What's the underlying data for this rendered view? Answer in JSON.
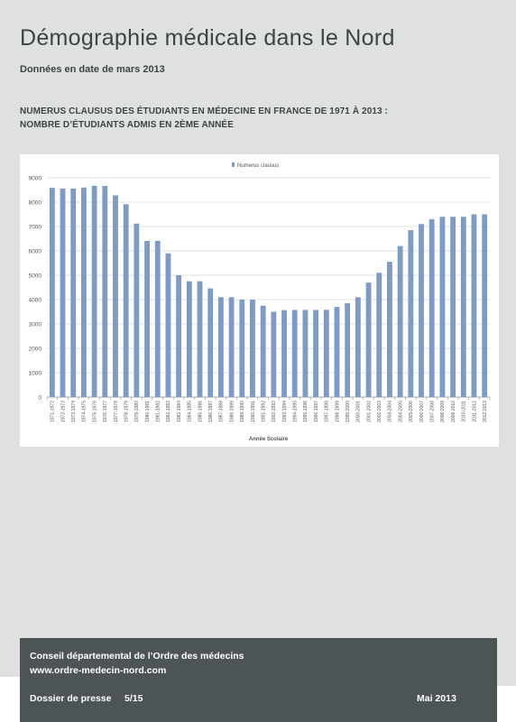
{
  "header": {
    "title": "Démographie médicale dans le Nord",
    "subtitle": "Données en date de mars 2013",
    "heading_line1": "NUMERUS CLAUSUS DES ÉTUDIANTS EN MÉDECINE EN FRANCE DE 1971 À 2013 :",
    "heading_line2": "NOMBRE D’ÉTUDIANTS ADMIS EN 2ÈME ANNÉE"
  },
  "chart_data": {
    "type": "bar",
    "categories": [
      "1971-1972",
      "1972-1973",
      "1973-1974",
      "1974-1975",
      "1975-1976",
      "1976-1977",
      "1977-1978",
      "1978-1979",
      "1979-1980",
      "1980-1981",
      "1981-1982",
      "1982-1983",
      "1983-1984",
      "1984-1985",
      "1985-1986",
      "1986-1987",
      "1987-1988",
      "1988-1989",
      "1989-1990",
      "1990-1991",
      "1991-1992",
      "1992-1993",
      "1993-1994",
      "1994-1995",
      "1995-1996",
      "1996-1997",
      "1997-1998",
      "1998-1999",
      "1999-2000",
      "2000-2001",
      "2001-2002",
      "2002-2003",
      "2003-2004",
      "2004-2005",
      "2005-2006",
      "2006-2007",
      "2007-2008",
      "2008-2009",
      "2009-2010",
      "2010-2011",
      "2011-2012",
      "2012-2013"
    ],
    "series": [
      {
        "name": "Numerus clausus",
        "values": [
          8588,
          8558,
          8558,
          8600,
          8671,
          8671,
          8279,
          7913,
          7121,
          6409,
          6409,
          5900,
          5000,
          4754,
          4754,
          4460,
          4100,
          4100,
          4000,
          4000,
          3750,
          3500,
          3570,
          3576,
          3576,
          3576,
          3583,
          3700,
          3850,
          4100,
          4700,
          5100,
          5550,
          6200,
          6850,
          7100,
          7300,
          7400,
          7400,
          7400,
          7500,
          7500
        ]
      }
    ],
    "xlabel": "Année Scolaire",
    "ylabel": "",
    "ylim": [
      0,
      9000
    ],
    "yticks": [
      0,
      1000,
      2000,
      3000,
      4000,
      5000,
      6000,
      7000,
      8000,
      9000
    ],
    "grid": true,
    "legend": "top-center",
    "bar_color": "#7e9ac6"
  },
  "footer": {
    "org_line": "Conseil départemental de l’Ordre des médecins",
    "url": "www.ordre-medecin-nord.com",
    "dossier": "Dossier de presse",
    "page": "5/15",
    "date": "Mai 2013"
  }
}
